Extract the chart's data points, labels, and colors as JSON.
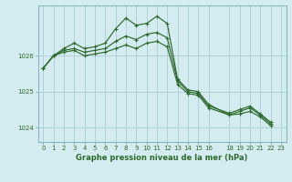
{
  "bg_color": "#d4ecf0",
  "grid_color": "#aacdd6",
  "line_color": "#2d6a2d",
  "marker_color": "#2d6a2d",
  "title": "Graphe pression niveau de la mer (hPa)",
  "xlim": [
    -0.5,
    23.5
  ],
  "ylim": [
    1023.6,
    1027.4
  ],
  "yticks": [
    1024,
    1025,
    1026
  ],
  "xtick_positions": [
    0,
    1,
    2,
    3,
    4,
    5,
    6,
    7,
    8,
    9,
    10,
    11,
    12,
    13,
    14,
    15,
    16,
    18,
    19,
    20,
    21,
    22,
    23
  ],
  "xtick_labels": [
    "0",
    "1",
    "2",
    "3",
    "4",
    "5",
    "6",
    "7",
    "8",
    "9",
    "10",
    "11",
    "12",
    "13",
    "14",
    "15",
    "16",
    "18",
    "19",
    "20",
    "21",
    "22",
    "23"
  ],
  "series": [
    {
      "x": [
        0,
        1,
        2,
        3,
        4,
        5,
        6,
        7,
        8,
        9,
        10,
        11,
        12,
        13,
        14,
        15,
        16,
        18,
        19,
        20,
        21,
        22
      ],
      "y": [
        1025.65,
        1026.0,
        1026.2,
        1026.35,
        1026.2,
        1026.25,
        1026.35,
        1026.75,
        1027.05,
        1026.85,
        1026.9,
        1027.1,
        1026.9,
        1025.35,
        1025.05,
        1025.0,
        1024.65,
        1024.35,
        1024.45,
        1024.55,
        1024.35,
        1024.1
      ]
    },
    {
      "x": [
        0,
        1,
        2,
        3,
        4,
        5,
        6,
        7,
        8,
        9,
        10,
        11,
        12,
        13,
        14,
        15,
        16,
        18,
        19,
        20,
        21,
        22
      ],
      "y": [
        1025.65,
        1026.0,
        1026.15,
        1026.2,
        1026.1,
        1026.15,
        1026.2,
        1026.4,
        1026.55,
        1026.45,
        1026.6,
        1026.65,
        1026.5,
        1025.3,
        1025.0,
        1024.95,
        1024.6,
        1024.4,
        1024.5,
        1024.6,
        1024.38,
        1024.15
      ]
    },
    {
      "x": [
        0,
        1,
        2,
        3,
        4,
        5,
        6,
        7,
        8,
        9,
        10,
        11,
        12,
        13,
        14,
        15,
        16,
        18,
        19,
        20,
        21,
        22
      ],
      "y": [
        1025.65,
        1026.0,
        1026.1,
        1026.15,
        1026.0,
        1026.05,
        1026.1,
        1026.2,
        1026.3,
        1026.2,
        1026.35,
        1026.4,
        1026.25,
        1025.2,
        1024.95,
        1024.9,
        1024.55,
        1024.35,
        1024.38,
        1024.45,
        1024.3,
        1024.05
      ]
    }
  ]
}
